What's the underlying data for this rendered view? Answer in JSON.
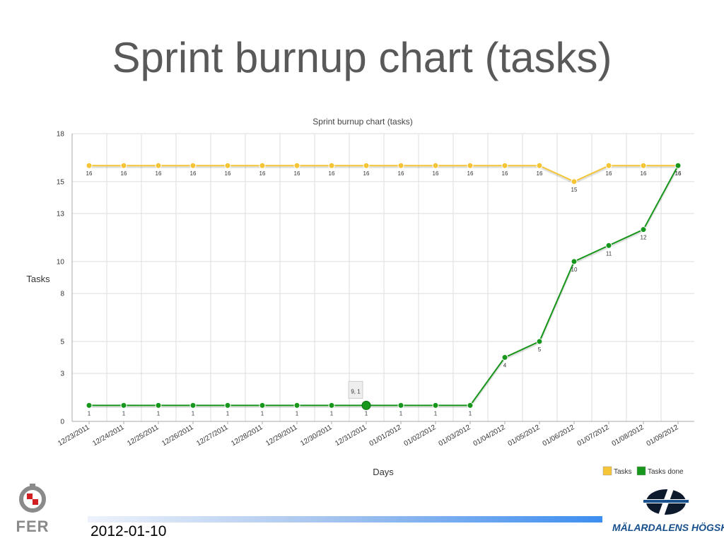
{
  "slide": {
    "title": "Sprint burnup chart (tasks)",
    "date": "2012-01-10",
    "logos": {
      "left": "FER",
      "right": "MÄLARDALENS HÖGSKOLA"
    }
  },
  "colors": {
    "tasks": "#f5c537",
    "tasks_done": "#16961a",
    "grid": "#dddddd",
    "title_text": "#595959",
    "footer_bar": "#3d8ef0"
  },
  "chart_data": {
    "type": "line",
    "title": "Sprint burnup chart (tasks)",
    "xlabel": "Days",
    "ylabel": "Tasks",
    "categories": [
      "12/23/2011",
      "12/24/2011",
      "12/25/2011",
      "12/26/2011",
      "12/27/2011",
      "12/28/2011",
      "12/29/2011",
      "12/30/2011",
      "12/31/2011",
      "01/01/2012",
      "01/02/2012",
      "01/03/2012",
      "01/04/2012",
      "01/05/2012",
      "01/06/2012",
      "01/07/2012",
      "01/08/2012",
      "01/09/2012"
    ],
    "y_ticks": [
      0,
      3,
      5,
      8,
      10,
      13,
      15,
      18
    ],
    "ylim": [
      0,
      18
    ],
    "grid": true,
    "legend_position": "bottom-right",
    "series": [
      {
        "name": "Tasks",
        "color": "#f5c537",
        "values": [
          16,
          16,
          16,
          16,
          16,
          16,
          16,
          16,
          16,
          16,
          16,
          16,
          16,
          16,
          15,
          16,
          16,
          16
        ]
      },
      {
        "name": "Tasks done",
        "color": "#16961a",
        "values": [
          1,
          1,
          1,
          1,
          1,
          1,
          1,
          1,
          1,
          1,
          1,
          1,
          4,
          5,
          10,
          11,
          12,
          16
        ]
      }
    ],
    "tooltip": {
      "text": "9, 1",
      "series": "Tasks done",
      "index": 8
    }
  }
}
